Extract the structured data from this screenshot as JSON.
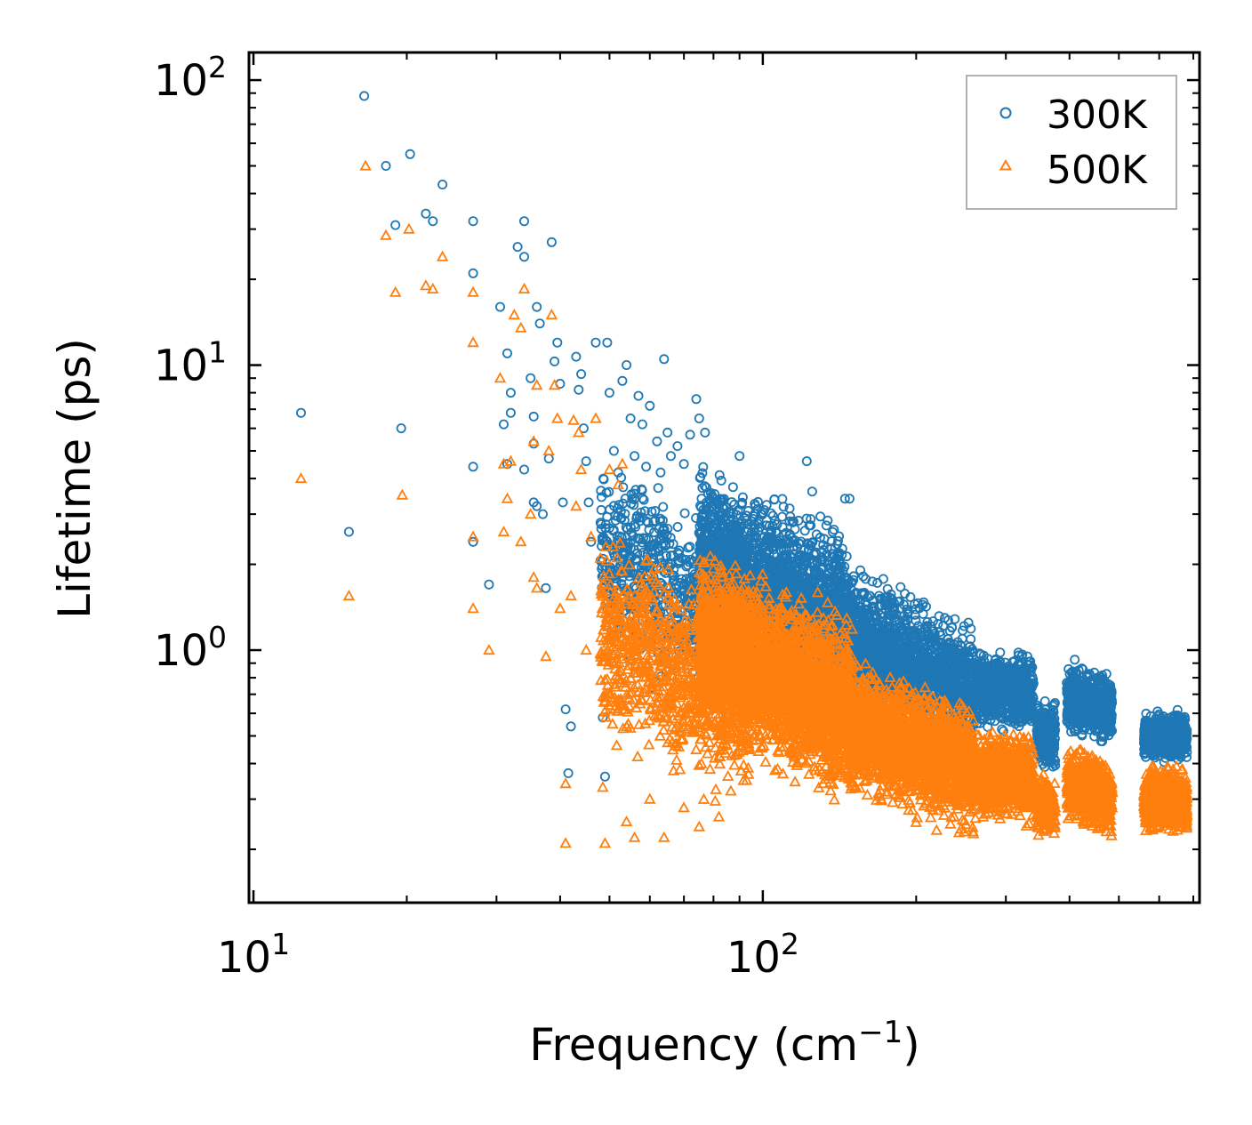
{
  "chart_data": {
    "type": "scatter",
    "xscale": "log",
    "yscale": "log",
    "xlim": [
      9.8,
      720
    ],
    "ylim": [
      0.13,
      125
    ],
    "xlabel": "Frequency (cm",
    "xlabel_sup": "−1",
    "xlabel_close": ")",
    "ylabel": "Lifetime (ps)",
    "x_ticks": [
      {
        "value": 10,
        "base": "10",
        "exp": "1"
      },
      {
        "value": 100,
        "base": "10",
        "exp": "2"
      }
    ],
    "y_ticks": [
      {
        "value": 1,
        "base": "10",
        "exp": "0"
      },
      {
        "value": 10,
        "base": "10",
        "exp": "1"
      },
      {
        "value": 100,
        "base": "10",
        "exp": "2"
      }
    ],
    "legend_position": "top-right",
    "series": [
      {
        "name": "300K",
        "marker": "circle",
        "color": "#1f77b4",
        "points": [
          [
            12.4,
            6.8
          ],
          [
            15.4,
            2.6
          ],
          [
            16.5,
            88
          ],
          [
            18.2,
            50
          ],
          [
            19.0,
            31
          ],
          [
            19.5,
            6.0
          ],
          [
            20.3,
            55
          ],
          [
            21.8,
            34
          ],
          [
            22.5,
            32
          ],
          [
            23.5,
            43
          ],
          [
            27.0,
            32
          ],
          [
            27.0,
            21
          ],
          [
            27.0,
            4.4
          ],
          [
            27.0,
            2.4
          ],
          [
            29.0,
            1.7
          ],
          [
            30.5,
            16
          ],
          [
            31.0,
            6.2
          ],
          [
            31.5,
            4.5
          ],
          [
            31.5,
            11
          ],
          [
            32.0,
            8.0
          ],
          [
            32.0,
            6.8
          ],
          [
            33.0,
            26
          ],
          [
            34.0,
            24
          ],
          [
            34.0,
            4.3
          ],
          [
            34.0,
            32
          ],
          [
            35.0,
            9.0
          ],
          [
            35.5,
            6.6
          ],
          [
            35.5,
            5.3
          ],
          [
            35.5,
            3.3
          ],
          [
            36.0,
            16
          ],
          [
            36.0,
            3.2
          ],
          [
            36.5,
            14
          ],
          [
            37.0,
            3.0
          ],
          [
            37.5,
            1.65
          ],
          [
            38.0,
            4.7
          ],
          [
            38.5,
            27
          ],
          [
            39.0,
            10.3
          ],
          [
            39.5,
            12
          ],
          [
            40.0,
            8.6
          ],
          [
            40.5,
            3.3
          ],
          [
            41.0,
            0.62
          ],
          [
            41.5,
            0.37
          ],
          [
            42.0,
            0.54
          ],
          [
            43.0,
            10.7
          ],
          [
            43.5,
            8.2
          ],
          [
            44.0,
            9.3
          ],
          [
            44.5,
            6.0
          ],
          [
            45.0,
            4.6
          ],
          [
            45.5,
            3.3
          ],
          [
            46.0,
            2.4
          ],
          [
            47.0,
            12
          ],
          [
            48.0,
            2.8
          ],
          [
            48.5,
            0.58
          ],
          [
            49.0,
            0.36
          ],
          [
            49.5,
            12
          ],
          [
            50.0,
            8.0
          ],
          [
            51.0,
            5.0
          ],
          [
            52.0,
            4.2
          ],
          [
            53.0,
            8.8
          ],
          [
            54.0,
            10
          ],
          [
            55.0,
            6.5
          ],
          [
            56.0,
            4.8
          ],
          [
            57.0,
            7.8
          ],
          [
            58.0,
            6.2
          ],
          [
            59.0,
            4.4
          ],
          [
            60.0,
            7.2
          ],
          [
            62.0,
            5.4
          ],
          [
            63.0,
            4.2
          ],
          [
            64.0,
            10.5
          ],
          [
            65.0,
            5.8
          ],
          [
            66.0,
            4.8
          ],
          [
            68.0,
            5.2
          ],
          [
            70.0,
            4.5
          ],
          [
            72.0,
            5.7
          ],
          [
            74.0,
            7.6
          ],
          [
            75.0,
            6.5
          ],
          [
            77.0,
            5.8
          ],
          [
            90.0,
            4.8
          ],
          [
            122,
            4.6
          ],
          [
            125,
            3.6
          ],
          [
            145,
            3.4
          ],
          [
            148,
            3.4
          ]
        ]
      },
      {
        "name": "500K",
        "marker": "triangle",
        "color": "#ff7f0e",
        "points": [
          [
            12.4,
            4.0
          ],
          [
            15.4,
            1.55
          ],
          [
            16.6,
            50
          ],
          [
            18.2,
            28.5
          ],
          [
            19.0,
            18
          ],
          [
            19.6,
            3.5
          ],
          [
            20.2,
            30
          ],
          [
            21.8,
            19
          ],
          [
            22.5,
            18.5
          ],
          [
            23.5,
            24
          ],
          [
            27.0,
            18
          ],
          [
            27.0,
            12
          ],
          [
            27.0,
            2.5
          ],
          [
            27.0,
            1.4
          ],
          [
            29.0,
            1.0
          ],
          [
            30.5,
            9.0
          ],
          [
            31.0,
            4.5
          ],
          [
            31.0,
            2.6
          ],
          [
            31.5,
            3.4
          ],
          [
            32.0,
            4.6
          ],
          [
            32.5,
            15
          ],
          [
            33.5,
            13.5
          ],
          [
            33.5,
            2.4
          ],
          [
            34.0,
            18.5
          ],
          [
            35.0,
            3.0
          ],
          [
            35.5,
            5.4
          ],
          [
            35.5,
            1.8
          ],
          [
            36.0,
            8.5
          ],
          [
            36.0,
            1.65
          ],
          [
            37.5,
            0.95
          ],
          [
            38.0,
            5.0
          ],
          [
            38.5,
            15
          ],
          [
            39.0,
            8.5
          ],
          [
            39.5,
            6.5
          ],
          [
            40.0,
            1.4
          ],
          [
            41.0,
            0.21
          ],
          [
            41.0,
            0.34
          ],
          [
            42.0,
            1.55
          ],
          [
            42.5,
            6.4
          ],
          [
            43.0,
            3.2
          ],
          [
            43.5,
            5.8
          ],
          [
            44.0,
            4.3
          ],
          [
            45.0,
            1.0
          ],
          [
            46.0,
            2.5
          ],
          [
            47.0,
            6.5
          ],
          [
            48.0,
            2.1
          ],
          [
            48.5,
            0.33
          ],
          [
            49.0,
            0.21
          ],
          [
            50.0,
            4.3
          ],
          [
            51.0,
            1.35
          ],
          [
            52.0,
            3.8
          ],
          [
            53.0,
            4.5
          ],
          [
            54.0,
            0.25
          ],
          [
            56.0,
            0.22
          ],
          [
            60.0,
            0.3
          ],
          [
            64.0,
            0.22
          ],
          [
            70.0,
            0.28
          ],
          [
            75.0,
            0.24
          ],
          [
            82.0,
            0.26
          ]
        ]
      }
    ],
    "bulk_regions": [
      {
        "series": "300K",
        "x_range": [
          48,
          95
        ],
        "y_center": 1.6,
        "y_spread": 2.6,
        "slope": -1.0,
        "count": 700
      },
      {
        "series": "300K",
        "x_range": [
          75,
          150
        ],
        "y_center": 1.6,
        "y_spread": 2.4,
        "slope": -0.85,
        "count": 2200
      },
      {
        "series": "300K",
        "x_range": [
          150,
          260
        ],
        "y_center": 0.9,
        "y_spread": 1.9,
        "slope": -0.8,
        "count": 1400
      },
      {
        "series": "300K",
        "x_range": [
          260,
          340
        ],
        "y_center": 0.72,
        "y_spread": 1.45,
        "slope": -0.2,
        "count": 700
      },
      {
        "series": "300K",
        "x_range": [
          345,
          375
        ],
        "y_center": 0.5,
        "y_spread": 1.4,
        "slope": 0.0,
        "count": 220
      },
      {
        "series": "300K",
        "x_range": [
          395,
          485
        ],
        "y_center": 0.65,
        "y_spread": 1.4,
        "slope": -0.6,
        "count": 650
      },
      {
        "series": "300K",
        "x_range": [
          560,
          680
        ],
        "y_center": 0.5,
        "y_spread": 1.25,
        "slope": 0.0,
        "count": 700
      },
      {
        "series": "500K",
        "x_range": [
          48,
          95
        ],
        "y_center": 0.85,
        "y_spread": 2.7,
        "slope": -0.9,
        "count": 900
      },
      {
        "series": "500K",
        "x_range": [
          75,
          150
        ],
        "y_center": 0.8,
        "y_spread": 2.4,
        "slope": -0.85,
        "count": 2800
      },
      {
        "series": "500K",
        "x_range": [
          150,
          260
        ],
        "y_center": 0.45,
        "y_spread": 1.9,
        "slope": -0.7,
        "count": 1800
      },
      {
        "series": "500K",
        "x_range": [
          260,
          340
        ],
        "y_center": 0.36,
        "y_spread": 1.5,
        "slope": -0.2,
        "count": 900
      },
      {
        "series": "500K",
        "x_range": [
          345,
          375
        ],
        "y_center": 0.28,
        "y_spread": 1.35,
        "slope": 0.0,
        "count": 200
      },
      {
        "series": "500K",
        "x_range": [
          395,
          485
        ],
        "y_center": 0.32,
        "y_spread": 1.45,
        "slope": -0.6,
        "count": 700
      },
      {
        "series": "500K",
        "x_range": [
          560,
          680
        ],
        "y_center": 0.3,
        "y_spread": 1.35,
        "slope": 0.0,
        "count": 800
      }
    ]
  }
}
